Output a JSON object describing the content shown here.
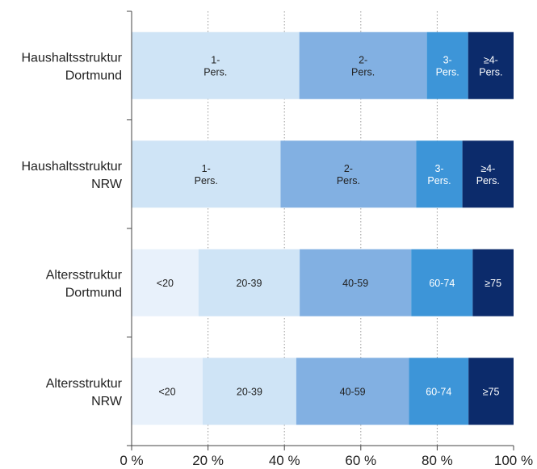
{
  "chart_data": {
    "type": "bar",
    "orientation": "horizontal",
    "stacked": true,
    "xlim": [
      0,
      100
    ],
    "x_ticks": [
      "0 %",
      "20 %",
      "40 %",
      "60 %",
      "80 %",
      "100 %"
    ],
    "grid": "vertical dotted",
    "title": "",
    "xlabel": "",
    "ylabel": "",
    "categories": [
      "Haushaltsstruktur\nDortmund",
      "Haushaltsstruktur\nNRW",
      "Altersstruktur\nDortmund",
      "Altersstruktur\nNRW"
    ],
    "bars": [
      {
        "segments": [
          {
            "label": "1-\nPers.",
            "value": 43.9,
            "color": "#cfe4f6",
            "text_color": "#222222"
          },
          {
            "label": "2-\nPers.",
            "value": 33.4,
            "color": "#82b0e2",
            "text_color": "#222222"
          },
          {
            "label": "3-\nPers.",
            "value": 10.8,
            "color": "#3d95d8",
            "text_color": "#ffffff"
          },
          {
            "label": "≥4-\nPers.",
            "value": 11.9,
            "color": "#0c2b6b",
            "text_color": "#ffffff"
          }
        ]
      },
      {
        "segments": [
          {
            "label": "1-\nPers.",
            "value": 39.0,
            "color": "#cfe4f6",
            "text_color": "#222222"
          },
          {
            "label": "2-\nPers.",
            "value": 35.5,
            "color": "#82b0e2",
            "text_color": "#222222"
          },
          {
            "label": "3-\nPers.",
            "value": 12.1,
            "color": "#3d95d8",
            "text_color": "#ffffff"
          },
          {
            "label": "≥4-\nPers.",
            "value": 13.4,
            "color": "#0c2b6b",
            "text_color": "#ffffff"
          }
        ]
      },
      {
        "segments": [
          {
            "label": "<20",
            "value": 17.5,
            "color": "#e8f1fb",
            "text_color": "#222222"
          },
          {
            "label": "20-39",
            "value": 26.5,
            "color": "#cfe4f6",
            "text_color": "#222222"
          },
          {
            "label": "40-59",
            "value": 29.2,
            "color": "#82b0e2",
            "text_color": "#222222"
          },
          {
            "label": "60-74",
            "value": 16.1,
            "color": "#3d95d8",
            "text_color": "#ffffff"
          },
          {
            "label": "≥75",
            "value": 10.7,
            "color": "#0c2b6b",
            "text_color": "#ffffff"
          }
        ]
      },
      {
        "segments": [
          {
            "label": "<20",
            "value": 18.6,
            "color": "#e8f1fb",
            "text_color": "#222222"
          },
          {
            "label": "20-39",
            "value": 24.5,
            "color": "#cfe4f6",
            "text_color": "#222222"
          },
          {
            "label": "40-59",
            "value": 29.5,
            "color": "#82b0e2",
            "text_color": "#222222"
          },
          {
            "label": "60-74",
            "value": 15.6,
            "color": "#3d95d8",
            "text_color": "#ffffff"
          },
          {
            "label": "≥75",
            "value": 11.8,
            "color": "#0c2b6b",
            "text_color": "#ffffff"
          }
        ]
      }
    ]
  }
}
